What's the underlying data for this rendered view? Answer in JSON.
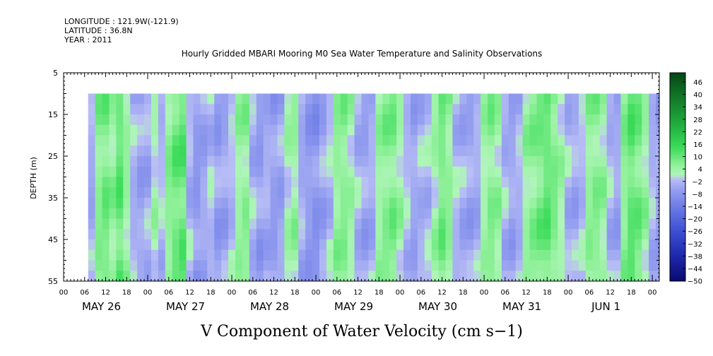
{
  "header": {
    "longitude": "LONGITUDE : 121.9W(-121.9)",
    "latitude": "LATITUDE : 36.8N",
    "year": "YEAR : 2011"
  },
  "chart_data": {
    "type": "heatmap",
    "title": "Hourly Gridded MBARI Mooring M0 Sea Water Temperature and Salinity Observations",
    "xlabel": "V Component of Water Velocity (cm s−1)",
    "ylabel": "DEPTH (m)",
    "y_ticks": [
      "5",
      "15",
      "25",
      "35",
      "45",
      "55"
    ],
    "ylim": [
      5,
      55
    ],
    "y_inverted": true,
    "x_hour_ticks": [
      "00",
      "06",
      "12",
      "18",
      "00",
      "06",
      "12",
      "18",
      "00",
      "06",
      "12",
      "18",
      "00",
      "06",
      "12",
      "18",
      "00",
      "06",
      "12",
      "18",
      "00",
      "06",
      "12",
      "18",
      "00",
      "06",
      "12",
      "18",
      "00"
    ],
    "x_days": [
      "MAY 26",
      "MAY 27",
      "MAY 28",
      "MAY 29",
      "MAY 30",
      "MAY 31",
      "JUN  1"
    ],
    "xlim_hours": [
      0,
      170
    ],
    "data_start_hour": 7,
    "data_depth_range": [
      10,
      55
    ],
    "colorbar": {
      "levels": [
        "46",
        "40",
        "34",
        "28",
        "22",
        "16",
        "10",
        "4",
        "−2",
        "−8",
        "−14",
        "−20",
        "−26",
        "−32",
        "−38",
        "−44",
        "−50"
      ],
      "min": -50,
      "max": 50
    },
    "pattern": "alternating bands of weak positive (green, ~0 to 16) and weak negative (lavender/blue, ~0 to -20) velocity across all depths; strongest positive near May 31 20:00 at 15-25 m and Jun 1 12:00-16:00; strongest negative near May 28 23:00 at 10-20 m",
    "columns": [
      {
        "h": 7,
        "v": -4
      },
      {
        "h": 9,
        "v": 6
      },
      {
        "h": 11,
        "v": 8
      },
      {
        "h": 13,
        "v": 5
      },
      {
        "h": 15,
        "v": 10
      },
      {
        "h": 17,
        "v": 4
      },
      {
        "h": 19,
        "v": -3
      },
      {
        "h": 21,
        "v": -5
      },
      {
        "h": 23,
        "v": -4
      },
      {
        "h": 25,
        "v": 2
      },
      {
        "h": 27,
        "v": -2
      },
      {
        "h": 29,
        "v": 6
      },
      {
        "h": 31,
        "v": 9
      },
      {
        "h": 33,
        "v": 10
      },
      {
        "h": 35,
        "v": -3
      },
      {
        "h": 37,
        "v": -7
      },
      {
        "h": 39,
        "v": -5
      },
      {
        "h": 41,
        "v": -2
      },
      {
        "h": 43,
        "v": -6
      },
      {
        "h": 45,
        "v": -5
      },
      {
        "h": 47,
        "v": -2
      },
      {
        "h": 49,
        "v": 4
      },
      {
        "h": 51,
        "v": 5
      },
      {
        "h": 53,
        "v": -3
      },
      {
        "h": 55,
        "v": -6
      },
      {
        "h": 57,
        "v": -4
      },
      {
        "h": 59,
        "v": -6
      },
      {
        "h": 61,
        "v": -5
      },
      {
        "h": 63,
        "v": 2
      },
      {
        "h": 65,
        "v": 4
      },
      {
        "h": 67,
        "v": -4
      },
      {
        "h": 69,
        "v": -7
      },
      {
        "h": 71,
        "v": -8
      },
      {
        "h": 73,
        "v": -5
      },
      {
        "h": 75,
        "v": -2
      },
      {
        "h": 77,
        "v": 5
      },
      {
        "h": 79,
        "v": 6
      },
      {
        "h": 81,
        "v": 3
      },
      {
        "h": 83,
        "v": -3
      },
      {
        "h": 85,
        "v": -5
      },
      {
        "h": 87,
        "v": -4
      },
      {
        "h": 89,
        "v": 4
      },
      {
        "h": 91,
        "v": 6
      },
      {
        "h": 93,
        "v": 7
      },
      {
        "h": 95,
        "v": 3
      },
      {
        "h": 97,
        "v": -2
      },
      {
        "h": 99,
        "v": -5
      },
      {
        "h": 101,
        "v": -3
      },
      {
        "h": 103,
        "v": -2
      },
      {
        "h": 105,
        "v": 3
      },
      {
        "h": 107,
        "v": 8
      },
      {
        "h": 109,
        "v": 5
      },
      {
        "h": 111,
        "v": -2
      },
      {
        "h": 113,
        "v": -4
      },
      {
        "h": 115,
        "v": -5
      },
      {
        "h": 117,
        "v": -4
      },
      {
        "h": 119,
        "v": 3
      },
      {
        "h": 121,
        "v": 6
      },
      {
        "h": 123,
        "v": 4
      },
      {
        "h": 125,
        "v": -3
      },
      {
        "h": 127,
        "v": -5
      },
      {
        "h": 129,
        "v": -3
      },
      {
        "h": 131,
        "v": 4
      },
      {
        "h": 133,
        "v": 6
      },
      {
        "h": 135,
        "v": 8
      },
      {
        "h": 137,
        "v": 10
      },
      {
        "h": 139,
        "v": 7
      },
      {
        "h": 141,
        "v": 3
      },
      {
        "h": 143,
        "v": -3
      },
      {
        "h": 145,
        "v": -4
      },
      {
        "h": 147,
        "v": -2
      },
      {
        "h": 149,
        "v": 5
      },
      {
        "h": 151,
        "v": 6
      },
      {
        "h": 153,
        "v": 4
      },
      {
        "h": 155,
        "v": -3
      },
      {
        "h": 157,
        "v": -5
      },
      {
        "h": 159,
        "v": 6
      },
      {
        "h": 161,
        "v": 10
      },
      {
        "h": 163,
        "v": 8
      },
      {
        "h": 165,
        "v": 4
      },
      {
        "h": 167,
        "v": -3
      },
      {
        "h": 169,
        "v": -5
      }
    ]
  }
}
